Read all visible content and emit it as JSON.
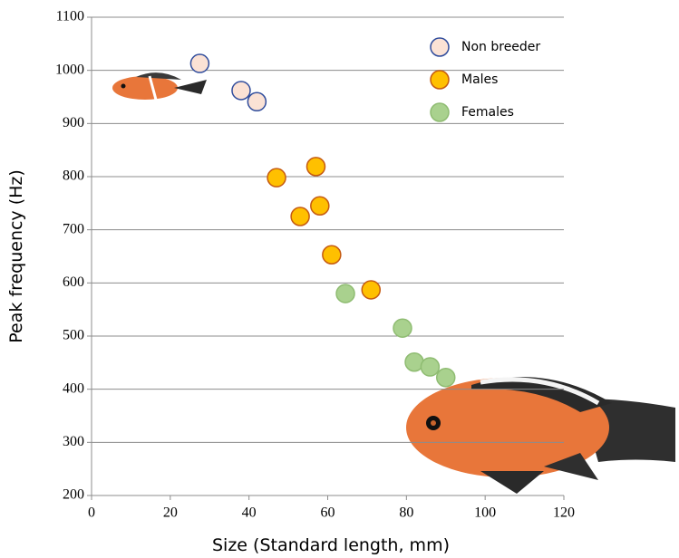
{
  "chart_data": {
    "type": "scatter",
    "x_label": "Size (Standard length, mm)",
    "y_label": "Peak frequency (Hz)",
    "xlim": [
      0,
      120
    ],
    "ylim": [
      200,
      1100
    ],
    "xticks": [
      0,
      20,
      40,
      60,
      80,
      100,
      120
    ],
    "yticks": [
      200,
      300,
      400,
      500,
      600,
      700,
      800,
      900,
      1000,
      1100
    ],
    "grid": true,
    "legend": "upper right",
    "series": [
      {
        "name": "Non breeder",
        "color": "#fbe2d5",
        "edge_color": "#2f4c9c",
        "x": [
          27.5,
          38,
          42
        ],
        "values": [
          1013,
          962,
          941
        ]
      },
      {
        "name": "Males",
        "color": "#ffc000",
        "edge_color": "#c55a11",
        "x": [
          47,
          57,
          53,
          58,
          61,
          71
        ],
        "values": [
          798,
          819,
          725,
          745,
          653,
          587
        ]
      },
      {
        "name": "Females",
        "color": "#a9d18e",
        "edge_color": "#8fbc72",
        "x": [
          64.5,
          79,
          82,
          86,
          90
        ],
        "values": [
          580,
          515,
          451,
          442,
          422
        ]
      }
    ]
  }
}
